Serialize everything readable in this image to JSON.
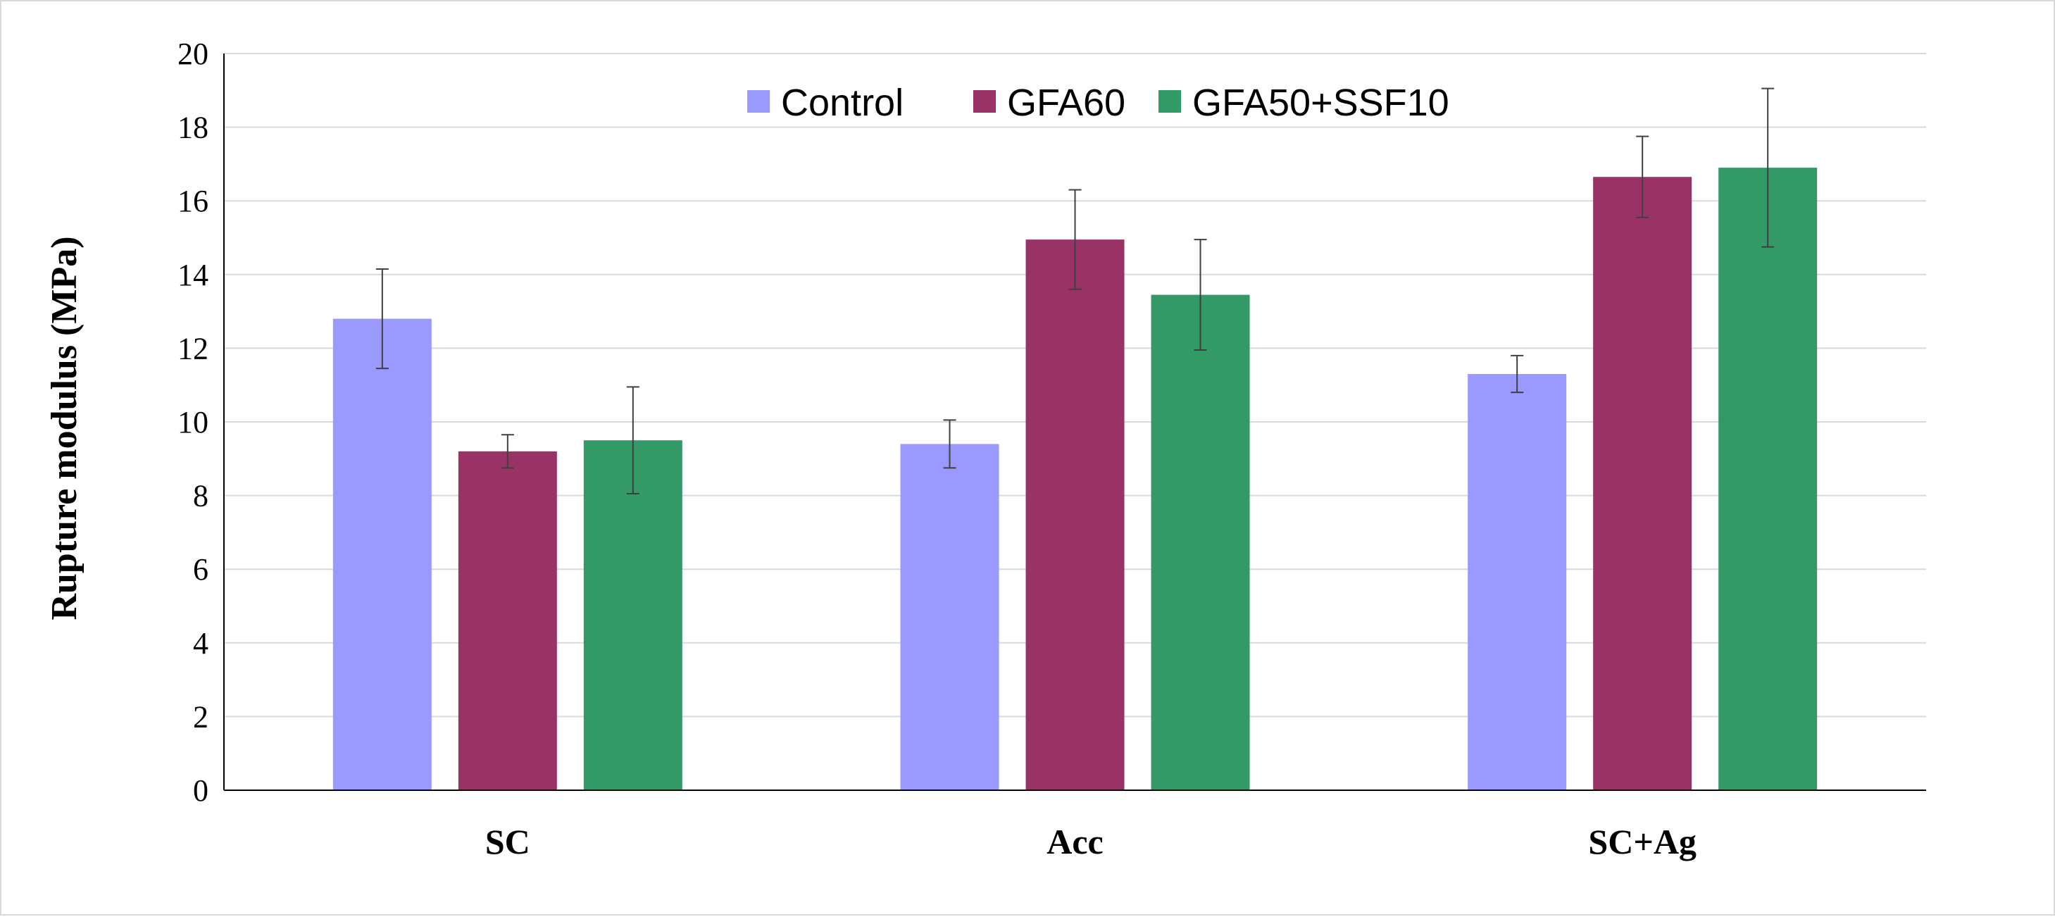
{
  "chart_data": {
    "type": "bar",
    "title": "",
    "xlabel": "",
    "ylabel": "Rupture modulus (MPa)",
    "ylim": [
      0,
      20
    ],
    "yticks": [
      0,
      2,
      4,
      6,
      8,
      10,
      12,
      14,
      16,
      18,
      20
    ],
    "grid": true,
    "legend_position": "top-center",
    "categories": [
      "SC",
      "Acc",
      "SC+Ag"
    ],
    "series": [
      {
        "name": "Control",
        "color": "#9999ff",
        "values": [
          12.8,
          9.4,
          11.3
        ],
        "errors": [
          1.35,
          0.65,
          0.5
        ]
      },
      {
        "name": "GFA60",
        "color": "#993366",
        "values": [
          9.2,
          14.95,
          16.65
        ],
        "errors": [
          0.45,
          1.35,
          1.1
        ]
      },
      {
        "name": "GFA50+SSF10",
        "color": "#339966",
        "values": [
          9.5,
          13.45,
          16.9
        ],
        "errors": [
          1.45,
          1.5,
          2.15
        ]
      }
    ]
  }
}
